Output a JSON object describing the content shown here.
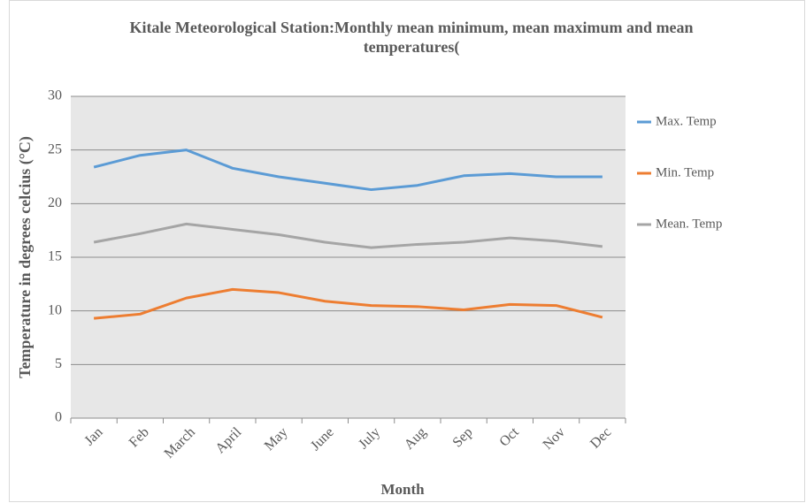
{
  "chart_data": {
    "type": "line",
    "title": "Kitale Meteorological Station:Monthly mean minimum, mean maximum and mean temperatures(",
    "x_label": "Month",
    "y_label": "Temperature in degrees celcius (°C)",
    "categories": [
      "Jan",
      "Feb",
      "March",
      "April",
      "May",
      "June",
      "July",
      "Aug",
      "Sep",
      "Oct",
      "Nov",
      "Dec"
    ],
    "series": [
      {
        "name": "Max. Temp",
        "color": "#5b9bd5",
        "values": [
          23.4,
          24.5,
          25.0,
          23.3,
          22.5,
          21.9,
          21.3,
          21.7,
          22.6,
          22.8,
          22.5,
          22.5
        ]
      },
      {
        "name": "Min. Temp",
        "color": "#ed7d31",
        "values": [
          9.3,
          9.7,
          11.2,
          12.0,
          11.7,
          10.9,
          10.5,
          10.4,
          10.1,
          10.6,
          10.5,
          9.4
        ]
      },
      {
        "name": "Mean. Temp",
        "color": "#a5a5a5",
        "values": [
          16.4,
          17.2,
          18.1,
          17.6,
          17.1,
          16.4,
          15.9,
          16.2,
          16.4,
          16.8,
          16.5,
          16.0
        ]
      }
    ],
    "ylim": [
      0,
      30
    ],
    "yticks": [
      0,
      5,
      10,
      15,
      20,
      25,
      30
    ],
    "grid": true,
    "legend": "right"
  }
}
